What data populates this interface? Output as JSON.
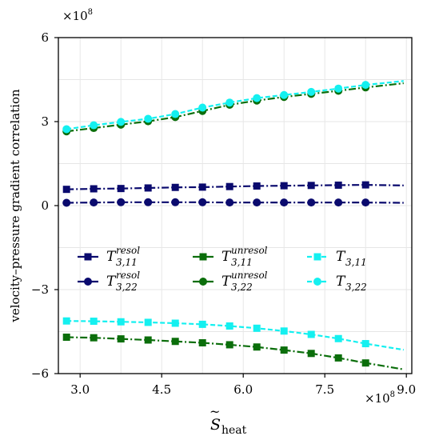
{
  "chart_data": {
    "type": "line",
    "title": "",
    "xlabel": "S",
    "xlabel_sub": "heat",
    "ylabel": "velocity–pressure gradient correlation",
    "x_multiplier": "×10",
    "x_multiplier_exp": "8",
    "y_multiplier": "×10",
    "y_multiplier_exp": "8",
    "xlim": [
      2.6,
      9.1
    ],
    "ylim": [
      -6,
      6
    ],
    "x_ticks": [
      3.0,
      4.5,
      6.0,
      7.5,
      9.0
    ],
    "x_tick_labels": [
      "3.0",
      "4.5",
      "6.0",
      "7.5",
      "9.0"
    ],
    "y_ticks": [
      -6,
      -3,
      0,
      3,
      6
    ],
    "y_tick_labels": [
      "−6",
      "−3",
      "0",
      "3",
      "6"
    ],
    "grid": true,
    "legend_position": "center",
    "x": [
      2.75,
      3.25,
      3.75,
      4.25,
      4.75,
      5.25,
      5.75,
      6.25,
      6.75,
      7.25,
      7.75,
      8.25
    ],
    "x_end": 8.95,
    "series": [
      {
        "name": "T",
        "sup": "resol",
        "sub": "3,11",
        "color": "#0a0a6e",
        "marker": "square",
        "dash": "dashdot",
        "values": [
          0.58,
          0.6,
          0.61,
          0.63,
          0.65,
          0.66,
          0.68,
          0.7,
          0.71,
          0.72,
          0.73,
          0.74
        ],
        "end": 0.72
      },
      {
        "name": "T",
        "sup": "resol",
        "sub": "3,22",
        "color": "#0a0a6e",
        "marker": "circle",
        "dash": "dashdot",
        "values": [
          0.1,
          0.11,
          0.12,
          0.12,
          0.12,
          0.12,
          0.11,
          0.11,
          0.11,
          0.11,
          0.11,
          0.11
        ],
        "end": 0.1
      },
      {
        "name": "T",
        "sup": "unresol",
        "sub": "3,11",
        "color": "#0b6e0b",
        "marker": "square",
        "dash": "dashdot",
        "values": [
          -4.7,
          -4.72,
          -4.76,
          -4.8,
          -4.85,
          -4.9,
          -4.97,
          -5.05,
          -5.16,
          -5.28,
          -5.44,
          -5.62
        ],
        "end": -5.85
      },
      {
        "name": "T",
        "sup": "unresol",
        "sub": "3,22",
        "color": "#0b6e0b",
        "marker": "circle",
        "dash": "dashdot",
        "values": [
          2.65,
          2.77,
          2.89,
          3.01,
          3.16,
          3.38,
          3.6,
          3.75,
          3.88,
          3.99,
          4.1,
          4.22
        ],
        "end": 4.37
      },
      {
        "name": "T",
        "sup": "",
        "sub": "3,11",
        "color": "#14f0f0",
        "marker": "square",
        "dash": "dashed",
        "values": [
          -4.12,
          -4.13,
          -4.15,
          -4.17,
          -4.2,
          -4.24,
          -4.3,
          -4.38,
          -4.48,
          -4.6,
          -4.75,
          -4.93
        ],
        "end": -5.15
      },
      {
        "name": "T",
        "sup": "",
        "sub": "3,22",
        "color": "#14f0f0",
        "marker": "circle",
        "dash": "dashed",
        "values": [
          2.73,
          2.87,
          2.99,
          3.1,
          3.27,
          3.5,
          3.68,
          3.84,
          3.95,
          4.06,
          4.18,
          4.31
        ],
        "end": 4.45
      }
    ]
  }
}
